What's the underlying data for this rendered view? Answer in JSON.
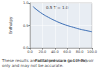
{
  "chart_data": {
    "type": "line",
    "x_label": "Partial pressure (x 10⁵ Pa)",
    "y_label": "Enthalpy",
    "annotation": "0.5 T = 1.0",
    "caption": [
      "These results are obtained via a gas reservoir",
      "only and may not be accurate."
    ],
    "x": [
      5,
      10,
      20,
      30,
      40,
      50,
      60,
      70,
      80,
      90,
      100
    ],
    "values": [
      0.92,
      0.86,
      0.76,
      0.68,
      0.61,
      0.55,
      0.5,
      0.46,
      0.42,
      0.39,
      0.36
    ],
    "color": "#3a6db5",
    "xlim": [
      0,
      100
    ],
    "xticks": [
      {
        "value": 0,
        "label": "0.0"
      },
      {
        "value": 20,
        "label": "20.0"
      },
      {
        "value": 40,
        "label": "40.0"
      },
      {
        "value": 60,
        "label": "60.0"
      },
      {
        "value": 80,
        "label": "80.0"
      },
      {
        "value": 100,
        "label": "100.0"
      }
    ],
    "ylim": [
      0,
      1
    ],
    "yticks": [
      {
        "value": 0,
        "label": "0.0"
      },
      {
        "value": 0.5,
        "label": "0.5"
      },
      {
        "value": 1,
        "label": "1.0"
      }
    ],
    "grid": true
  }
}
